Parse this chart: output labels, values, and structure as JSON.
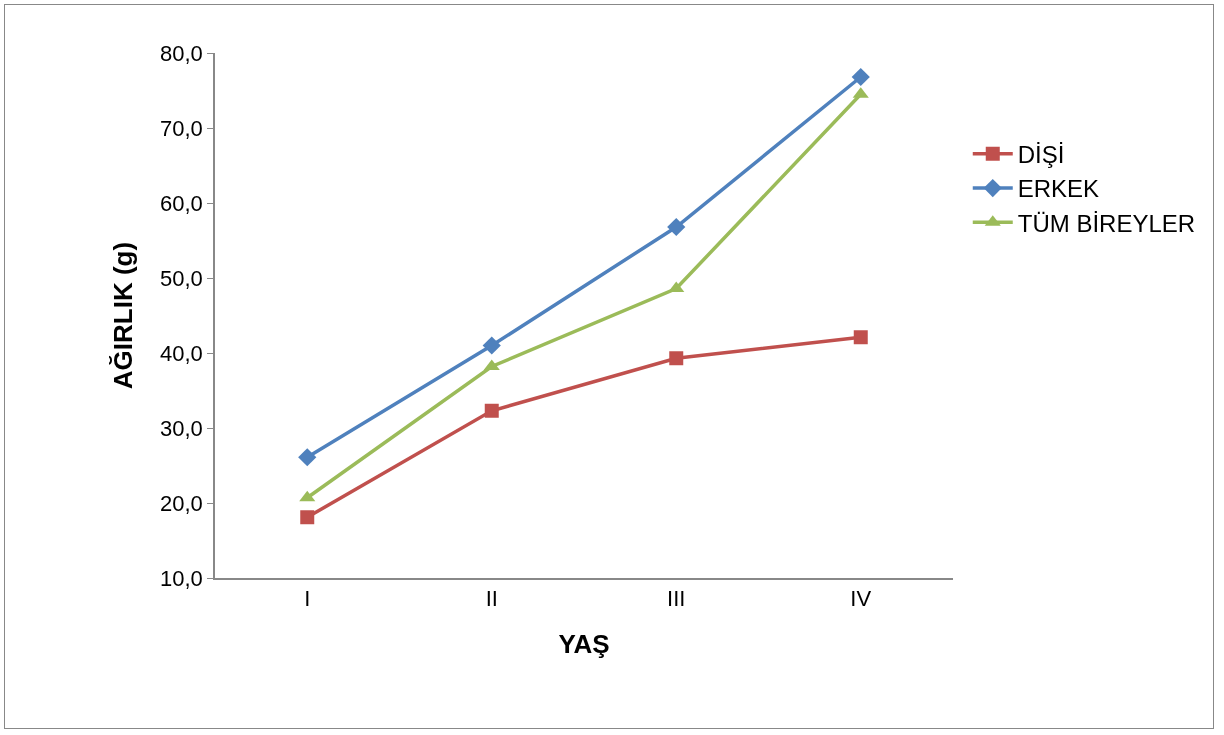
{
  "chart_data": {
    "type": "line",
    "xlabel": "YAŞ",
    "ylabel": "AĞIRLIK (g)",
    "categories": [
      "I",
      "II",
      "III",
      "IV"
    ],
    "series": [
      {
        "name": "DİŞİ",
        "color": "#c0504d",
        "marker": "square",
        "values": [
          18.1,
          32.3,
          39.3,
          42.1
        ]
      },
      {
        "name": "ERKEK",
        "color": "#4f81bd",
        "marker": "diamond",
        "values": [
          26.1,
          41.0,
          56.8,
          76.8
        ]
      },
      {
        "name": "TÜM BİREYLER",
        "color": "#9bbb59",
        "marker": "triangle",
        "values": [
          20.7,
          38.2,
          48.6,
          74.5
        ]
      }
    ],
    "ylim": [
      10,
      80
    ],
    "yticks": [
      {
        "value": 10,
        "label": "10,0"
      },
      {
        "value": 20,
        "label": "20,0"
      },
      {
        "value": 30,
        "label": "30,0"
      },
      {
        "value": 40,
        "label": "40,0"
      },
      {
        "value": 50,
        "label": "50,0"
      },
      {
        "value": 60,
        "label": "60,0"
      },
      {
        "value": 70,
        "label": "70,0"
      },
      {
        "value": 80,
        "label": "80,0"
      }
    ],
    "grid": false,
    "legend": "right",
    "line_style": "solid"
  }
}
